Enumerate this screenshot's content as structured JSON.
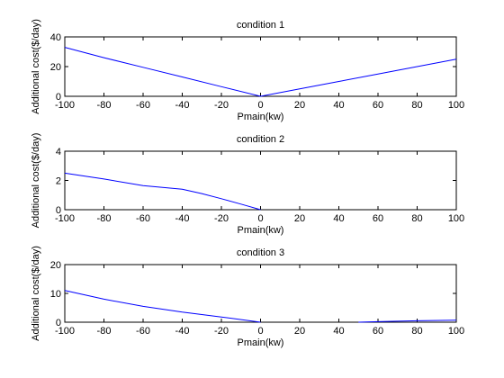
{
  "chart_data": [
    {
      "type": "line",
      "title": "condition 1",
      "xlabel": "Pmain(kw)",
      "ylabel": "Additional cost($/day)",
      "xlim": [
        -100,
        100
      ],
      "ylim": [
        0,
        40
      ],
      "xticks": [
        -100,
        -80,
        -60,
        -40,
        -20,
        0,
        20,
        40,
        60,
        80,
        100
      ],
      "yticks": [
        0,
        20,
        40
      ],
      "series": [
        {
          "color": "#0000ff",
          "x": [
            -100,
            -80,
            -60,
            -40,
            -20,
            0,
            20,
            40,
            60,
            80,
            100
          ],
          "y": [
            33,
            26,
            19.5,
            13,
            6.5,
            0,
            5,
            10,
            15,
            20,
            25
          ]
        }
      ]
    },
    {
      "type": "line",
      "title": "condition 2",
      "xlabel": "Pmain(kw)",
      "ylabel": "Additional cost($/day)",
      "xlim": [
        -100,
        100
      ],
      "ylim": [
        0,
        4
      ],
      "xticks": [
        -100,
        -80,
        -60,
        -40,
        -20,
        0,
        20,
        40,
        60,
        80,
        100
      ],
      "yticks": [
        0,
        2,
        4
      ],
      "series": [
        {
          "color": "#0000ff",
          "x": [
            -100,
            -80,
            -60,
            -40,
            -30,
            -20,
            -10,
            0
          ],
          "y": [
            2.5,
            2.1,
            1.65,
            1.4,
            1.1,
            0.75,
            0.38,
            0
          ]
        }
      ]
    },
    {
      "type": "line",
      "title": "condition 3",
      "xlabel": "Pmain(kw)",
      "ylabel": "Additional cost($/day)",
      "xlim": [
        -100,
        100
      ],
      "ylim": [
        0,
        20
      ],
      "xticks": [
        -100,
        -80,
        -60,
        -40,
        -20,
        0,
        20,
        40,
        60,
        80,
        100
      ],
      "yticks": [
        0,
        10,
        20
      ],
      "series": [
        {
          "color": "#0000ff",
          "x": [
            -100,
            -80,
            -60,
            -40,
            -20,
            0
          ],
          "y": [
            11,
            8,
            5.5,
            3.5,
            1.8,
            0
          ]
        },
        {
          "color": "#0000ff",
          "x": [
            50,
            60,
            80,
            100
          ],
          "y": [
            0,
            0.2,
            0.5,
            0.7
          ]
        }
      ]
    }
  ]
}
